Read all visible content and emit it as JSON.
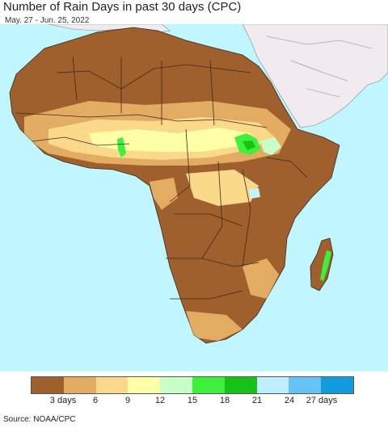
{
  "title": "Number of Rain Days in past 30 days (CPC)",
  "date_range": "May. 27 - Jun. 25, 2022",
  "source": "Source: NOAA/CPC",
  "colors": {
    "ocean": "#bff6ff",
    "non_africa_land": "#efebef",
    "base_dry": "#a0602e",
    "border": "#3a2a1e"
  },
  "legend": {
    "swatches": [
      "#a0602e",
      "#e3ac63",
      "#fbd98b",
      "#ffffa7",
      "#c8ffc8",
      "#3cf03c",
      "#17c217",
      "#bfeeff",
      "#66c3f5",
      "#119cdf"
    ],
    "labels": [
      "3 days",
      "6",
      "9",
      "12",
      "15",
      "18",
      "21",
      "24",
      "27 days"
    ]
  }
}
